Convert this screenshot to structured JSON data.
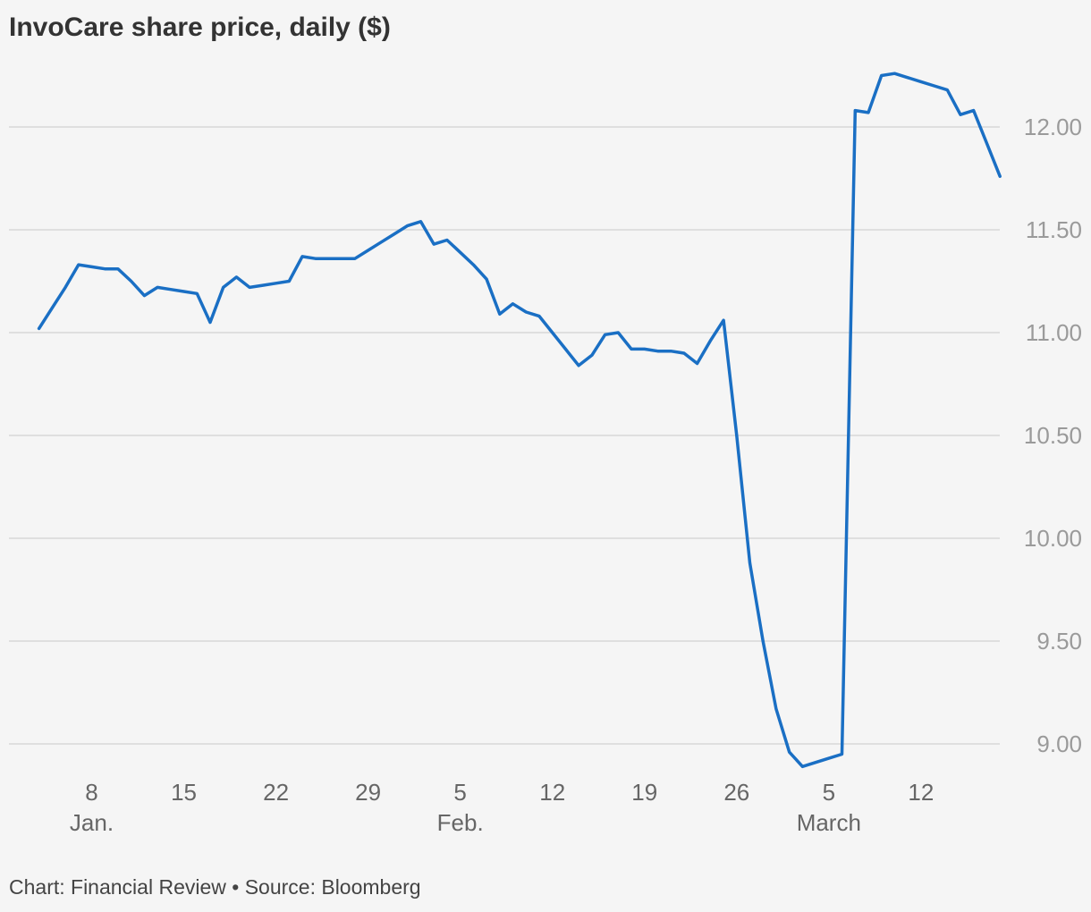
{
  "chart_data": {
    "type": "line",
    "title": "InvoCare share price, daily ($)",
    "source": "Chart: Financial Review • Source: Bloomberg",
    "xlabel": "",
    "ylabel": "",
    "ylim": [
      8.9,
      12.3
    ],
    "yticks": [
      9.0,
      9.5,
      10.0,
      10.5,
      11.0,
      11.5,
      12.0
    ],
    "ytick_labels": [
      "9.00",
      "9.50",
      "10.00",
      "10.50",
      "11.00",
      "11.50",
      "12.00"
    ],
    "xticks": [
      {
        "date": "2021-01-08",
        "label": "8",
        "month": "Jan."
      },
      {
        "date": "2021-01-15",
        "label": "15",
        "month": ""
      },
      {
        "date": "2021-01-22",
        "label": "22",
        "month": ""
      },
      {
        "date": "2021-01-29",
        "label": "29",
        "month": ""
      },
      {
        "date": "2021-02-05",
        "label": "5",
        "month": "Feb."
      },
      {
        "date": "2021-02-12",
        "label": "12",
        "month": ""
      },
      {
        "date": "2021-02-19",
        "label": "19",
        "month": ""
      },
      {
        "date": "2021-02-26",
        "label": "26",
        "month": ""
      },
      {
        "date": "2021-03-05",
        "label": "5",
        "month": "March"
      },
      {
        "date": "2021-03-12",
        "label": "12",
        "month": ""
      }
    ],
    "grid": true,
    "color": "#1a6fc4",
    "series": [
      {
        "name": "",
        "points": [
          [
            "2021-01-04",
            11.02
          ],
          [
            "2021-01-05",
            11.12
          ],
          [
            "2021-01-06",
            11.22
          ],
          [
            "2021-01-07",
            11.33
          ],
          [
            "2021-01-08",
            11.32
          ],
          [
            "2021-01-09",
            11.31
          ],
          [
            "2021-01-10",
            11.31
          ],
          [
            "2021-01-11",
            11.25
          ],
          [
            "2021-01-12",
            11.18
          ],
          [
            "2021-01-13",
            11.22
          ],
          [
            "2021-01-14",
            11.21
          ],
          [
            "2021-01-15",
            11.2
          ],
          [
            "2021-01-16",
            11.19
          ],
          [
            "2021-01-17",
            11.05
          ],
          [
            "2021-01-18",
            11.22
          ],
          [
            "2021-01-19",
            11.27
          ],
          [
            "2021-01-20",
            11.22
          ],
          [
            "2021-01-21",
            11.23
          ],
          [
            "2021-01-22",
            11.24
          ],
          [
            "2021-01-23",
            11.25
          ],
          [
            "2021-01-24",
            11.37
          ],
          [
            "2021-01-25",
            11.36
          ],
          [
            "2021-01-26",
            11.36
          ],
          [
            "2021-01-27",
            11.36
          ],
          [
            "2021-01-28",
            11.36
          ],
          [
            "2021-01-29",
            11.4
          ],
          [
            "2021-01-30",
            11.44
          ],
          [
            "2021-01-31",
            11.48
          ],
          [
            "2021-02-01",
            11.52
          ],
          [
            "2021-02-02",
            11.54
          ],
          [
            "2021-02-03",
            11.43
          ],
          [
            "2021-02-04",
            11.45
          ],
          [
            "2021-02-05",
            11.39
          ],
          [
            "2021-02-06",
            11.33
          ],
          [
            "2021-02-07",
            11.26
          ],
          [
            "2021-02-08",
            11.09
          ],
          [
            "2021-02-09",
            11.14
          ],
          [
            "2021-02-10",
            11.1
          ],
          [
            "2021-02-11",
            11.08
          ],
          [
            "2021-02-12",
            11.0
          ],
          [
            "2021-02-13",
            10.92
          ],
          [
            "2021-02-14",
            10.84
          ],
          [
            "2021-02-15",
            10.89
          ],
          [
            "2021-02-16",
            10.99
          ],
          [
            "2021-02-17",
            11.0
          ],
          [
            "2021-02-18",
            10.92
          ],
          [
            "2021-02-19",
            10.92
          ],
          [
            "2021-02-20",
            10.91
          ],
          [
            "2021-02-21",
            10.91
          ],
          [
            "2021-02-22",
            10.9
          ],
          [
            "2021-02-23",
            10.85
          ],
          [
            "2021-02-24",
            10.96
          ],
          [
            "2021-02-25",
            11.06
          ],
          [
            "2021-02-26",
            10.5
          ],
          [
            "2021-02-27",
            9.88
          ],
          [
            "2021-02-28",
            9.5
          ],
          [
            "2021-03-01",
            9.17
          ],
          [
            "2021-03-02",
            8.96
          ],
          [
            "2021-03-03",
            8.89
          ],
          [
            "2021-03-04",
            8.91
          ],
          [
            "2021-03-05",
            8.93
          ],
          [
            "2021-03-06",
            8.95
          ],
          [
            "2021-03-07",
            12.08
          ],
          [
            "2021-03-08",
            12.07
          ],
          [
            "2021-03-09",
            12.25
          ],
          [
            "2021-03-10",
            12.26
          ],
          [
            "2021-03-11",
            12.24
          ],
          [
            "2021-03-12",
            12.22
          ],
          [
            "2021-03-13",
            12.2
          ],
          [
            "2021-03-14",
            12.18
          ],
          [
            "2021-03-15",
            12.06
          ],
          [
            "2021-03-16",
            12.08
          ],
          [
            "2021-03-17",
            11.92
          ],
          [
            "2021-03-18",
            11.76
          ]
        ]
      }
    ]
  }
}
